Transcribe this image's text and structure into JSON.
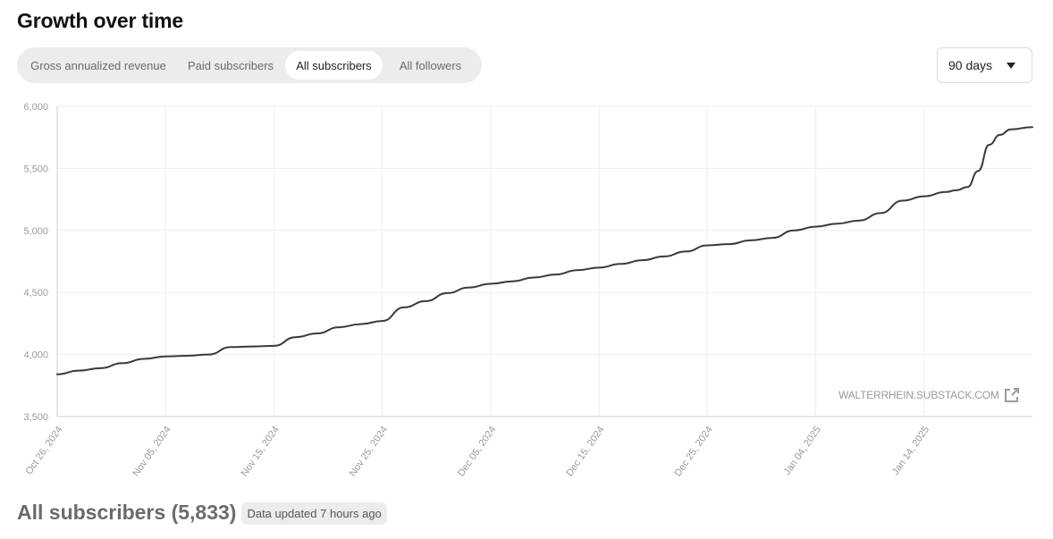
{
  "header": {
    "title": "Growth over time"
  },
  "tabs": [
    {
      "label": "Gross annualized revenue",
      "active": false
    },
    {
      "label": "Paid subscribers",
      "active": false
    },
    {
      "label": "All subscribers",
      "active": true
    },
    {
      "label": "All followers",
      "active": false
    }
  ],
  "range_select": {
    "value": "90 days",
    "icon": "caret-down-icon"
  },
  "watermark": {
    "text": "WALTERRHEIN.SUBSTACK.COM",
    "icon": "external-link-icon"
  },
  "footer": {
    "title": "All subscribers (5,833)",
    "badge": "Data updated 7 hours ago"
  },
  "colors": {
    "line": "#3a3a3a",
    "grid": "#eeeeee",
    "axis_label": "#9a9a9a"
  },
  "chart_data": {
    "type": "line",
    "title": "",
    "xlabel": "",
    "ylabel": "",
    "ylim": [
      3500,
      6000
    ],
    "xlim": [
      "2024-10-26",
      "2025-01-24"
    ],
    "grid": true,
    "legend": "none",
    "y_ticks": [
      3500,
      4000,
      4500,
      5000,
      5500,
      6000
    ],
    "y_tick_labels": [
      "3,500",
      "4,000",
      "4,500",
      "5,000",
      "5,500",
      "6,000"
    ],
    "x_ticks": [
      "2024-10-26",
      "2024-11-05",
      "2024-11-15",
      "2024-11-25",
      "2024-12-05",
      "2024-12-15",
      "2024-12-25",
      "2025-01-04",
      "2025-01-14"
    ],
    "x_tick_labels": [
      "Oct 26, 2024",
      "Nov 05, 2024",
      "Nov 15, 2024",
      "Nov 25, 2024",
      "Dec 05, 2024",
      "Dec 15, 2024",
      "Dec 25, 2024",
      "Jan 04, 2025",
      "Jan 14, 2025"
    ],
    "series": [
      {
        "x": [
          "2024-10-26",
          "2024-10-28",
          "2024-10-30",
          "2024-11-01",
          "2024-11-03",
          "2024-11-05",
          "2024-11-07",
          "2024-11-09",
          "2024-11-11",
          "2024-11-13",
          "2024-11-15",
          "2024-11-17",
          "2024-11-19",
          "2024-11-21",
          "2024-11-23",
          "2024-11-25",
          "2024-11-27",
          "2024-11-29",
          "2024-12-01",
          "2024-12-03",
          "2024-12-05",
          "2024-12-07",
          "2024-12-09",
          "2024-12-11",
          "2024-12-13",
          "2024-12-15",
          "2024-12-17",
          "2024-12-19",
          "2024-12-21",
          "2024-12-23",
          "2024-12-25",
          "2024-12-27",
          "2024-12-29",
          "2024-12-31",
          "2025-01-02",
          "2025-01-04",
          "2025-01-06",
          "2025-01-08",
          "2025-01-10",
          "2025-01-12",
          "2025-01-14",
          "2025-01-16",
          "2025-01-17",
          "2025-01-18",
          "2025-01-19",
          "2025-01-20",
          "2025-01-21",
          "2025-01-22",
          "2025-01-24"
        ],
        "values": [
          3840,
          3870,
          3890,
          3930,
          3965,
          3985,
          3990,
          4000,
          4060,
          4065,
          4070,
          4140,
          4170,
          4220,
          4245,
          4270,
          4380,
          4430,
          4495,
          4540,
          4570,
          4590,
          4620,
          4645,
          4680,
          4700,
          4730,
          4760,
          4790,
          4830,
          4880,
          4890,
          4920,
          4940,
          5000,
          5030,
          5055,
          5080,
          5140,
          5240,
          5275,
          5310,
          5325,
          5350,
          5480,
          5690,
          5770,
          5815,
          5833
        ]
      }
    ]
  }
}
